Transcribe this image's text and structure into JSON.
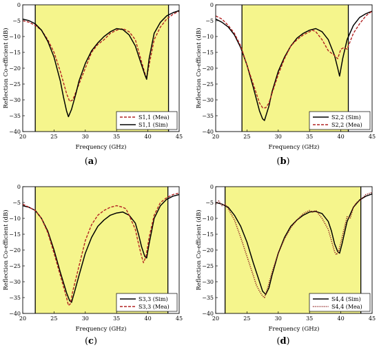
{
  "colors": {
    "band_fill": "#f5f58c",
    "sim_line": "#000000",
    "mea_line": "#b22222",
    "mea_line_dotted": "#8b1a1a"
  },
  "chart_data": [
    {
      "type": "line",
      "panel_label": "(a)",
      "xlabel": "Frequency (GHz)",
      "ylabel": "Reflection Co-efficient (dB)",
      "xlim": [
        20,
        45
      ],
      "ylim": [
        -40,
        0
      ],
      "x_ticks": [
        20,
        25,
        30,
        35,
        40,
        45
      ],
      "y_ticks": [
        0,
        -5,
        -10,
        -15,
        -20,
        -25,
        -30,
        -35,
        -40
      ],
      "band": [
        22.0,
        43.3
      ],
      "legend_position": "bottom-right",
      "series": [
        {
          "name": "S1,1 (Mea)",
          "style": "dashed",
          "x": [
            20,
            21,
            22,
            23,
            24,
            25,
            26,
            27,
            27.5,
            28,
            29,
            30,
            31,
            32,
            33,
            34,
            35,
            36,
            37,
            38,
            39,
            39.5,
            39.8,
            40.3,
            41,
            42,
            43,
            44,
            45
          ],
          "y": [
            -5,
            -5.5,
            -6.5,
            -8,
            -11,
            -15,
            -21,
            -28,
            -30.5,
            -30,
            -25,
            -20,
            -15,
            -12.5,
            -11,
            -9,
            -8,
            -7.5,
            -8.5,
            -11,
            -18,
            -21.5,
            -23,
            -18,
            -11,
            -7,
            -4.5,
            -3,
            -2
          ]
        },
        {
          "name": "S1,1 (Sim)",
          "style": "solid",
          "x": [
            20,
            21,
            22,
            23,
            24,
            25,
            26,
            26.5,
            27,
            27.3,
            27.8,
            28.5,
            29,
            30,
            31,
            32,
            33,
            34,
            35,
            36,
            37,
            38,
            39,
            39.5,
            39.8,
            40.2,
            41,
            42,
            43,
            44,
            45
          ],
          "y": [
            -4.5,
            -5,
            -6,
            -8,
            -11.5,
            -16.5,
            -24,
            -29,
            -33.5,
            -35.3,
            -33,
            -28,
            -24,
            -18.5,
            -14.5,
            -12,
            -10,
            -8.5,
            -7.5,
            -7.8,
            -9.5,
            -13,
            -19,
            -22,
            -23.5,
            -17,
            -9,
            -5.5,
            -3.5,
            -2.5,
            -1.8
          ]
        }
      ]
    },
    {
      "type": "line",
      "panel_label": "(b)",
      "xlabel": "Frequency (GHz)",
      "ylabel": "Reflection Co-efficient (dB)",
      "xlim": [
        20,
        45
      ],
      "ylim": [
        -40,
        0
      ],
      "x_ticks": [
        20,
        25,
        30,
        35,
        40,
        45
      ],
      "y_ticks": [
        0,
        -5,
        -10,
        -15,
        -20,
        -25,
        -30,
        -35,
        -40
      ],
      "band": [
        24.2,
        41.2
      ],
      "legend_position": "bottom-right",
      "series": [
        {
          "name": "S2,2 (Sim)",
          "style": "solid",
          "x": [
            20,
            21,
            22,
            23,
            24,
            25,
            26,
            27,
            27.5,
            27.8,
            28.5,
            29,
            30,
            31,
            32,
            33,
            34,
            35,
            36,
            37,
            38,
            39,
            39.5,
            39.8,
            40.3,
            41,
            42,
            43,
            44,
            45
          ],
          "y": [
            -4.5,
            -5.5,
            -7,
            -9.5,
            -13.5,
            -19,
            -26,
            -33.5,
            -36,
            -36.5,
            -32,
            -27.5,
            -21,
            -16.5,
            -13,
            -10.5,
            -9,
            -8,
            -7.5,
            -8.5,
            -11,
            -16,
            -20,
            -22.5,
            -17,
            -11,
            -6.5,
            -4,
            -2.8,
            -2
          ]
        },
        {
          "name": "S2,2 (Mea)",
          "style": "dashed",
          "x": [
            20,
            21,
            22,
            23,
            24,
            25,
            26,
            27,
            27.5,
            28,
            28.5,
            29,
            30,
            31,
            32,
            33,
            34,
            35,
            35.5,
            36,
            37,
            38,
            39,
            39.5,
            40,
            40.5,
            41,
            42,
            43,
            44,
            45
          ],
          "y": [
            -3.5,
            -4.5,
            -6.5,
            -9,
            -13,
            -19,
            -25,
            -31,
            -32.5,
            -32.5,
            -31,
            -28,
            -22,
            -17,
            -13,
            -11,
            -9.5,
            -8.5,
            -8,
            -8.5,
            -11,
            -14.5,
            -16,
            -17,
            -14,
            -13.5,
            -14,
            -9,
            -6,
            -3.5,
            -2
          ]
        }
      ]
    },
    {
      "type": "line",
      "panel_label": "(c)",
      "xlabel": "Frequency (GHz)",
      "ylabel": "Reflection Co-efficient (dB)",
      "xlim": [
        20,
        45
      ],
      "ylim": [
        -40,
        0
      ],
      "x_ticks": [
        20,
        25,
        30,
        35,
        40,
        45
      ],
      "y_ticks": [
        0,
        -5,
        -10,
        -15,
        -20,
        -25,
        -30,
        -35,
        -40
      ],
      "band": [
        22.0,
        43.2
      ],
      "legend_position": "bottom-right",
      "series": [
        {
          "name": "S3,3 (Sim)",
          "style": "solid",
          "x": [
            20,
            21,
            22,
            23,
            24,
            25,
            26,
            27,
            27.5,
            27.8,
            28.3,
            29,
            30,
            31,
            32,
            33,
            34,
            35,
            36,
            37,
            38,
            38.5,
            39,
            39.5,
            39.8,
            40.2,
            41,
            42,
            43,
            44,
            45
          ],
          "y": [
            -6,
            -6.5,
            -7.5,
            -10,
            -14,
            -20,
            -27,
            -33.5,
            -36,
            -36.5,
            -33,
            -28,
            -21,
            -16,
            -12.5,
            -10.5,
            -9,
            -8.3,
            -8,
            -9,
            -11.5,
            -15,
            -19,
            -22,
            -22.5,
            -18,
            -10,
            -6,
            -4,
            -3,
            -2.5
          ]
        },
        {
          "name": "S3,3 (Mea)",
          "style": "dashed",
          "x": [
            20,
            21,
            22,
            23,
            24,
            25,
            26,
            27,
            27.3,
            27.6,
            28,
            29,
            30,
            31,
            32,
            33,
            34,
            35,
            36,
            36.5,
            37,
            38,
            38.5,
            39,
            39.3,
            39.7,
            40.2,
            41,
            42,
            43,
            44,
            45
          ],
          "y": [
            -5.5,
            -6.5,
            -7.5,
            -10,
            -14.5,
            -21,
            -28,
            -35,
            -37.5,
            -37,
            -33,
            -25,
            -17,
            -12,
            -9,
            -7.5,
            -6.5,
            -6,
            -6.5,
            -7,
            -9,
            -13.5,
            -18,
            -22,
            -24,
            -22,
            -16,
            -9,
            -5,
            -3.5,
            -2.5,
            -2
          ]
        }
      ]
    },
    {
      "type": "line",
      "panel_label": "(d)",
      "xlabel": "Frequency (GHz)",
      "ylabel": "Reflection Co-efficient (dB)",
      "xlim": [
        20,
        45
      ],
      "ylim": [
        -40,
        0
      ],
      "x_ticks": [
        20,
        25,
        30,
        35,
        40,
        45
      ],
      "y_ticks": [
        0,
        -5,
        -10,
        -15,
        -20,
        -25,
        -30,
        -35,
        -40
      ],
      "band": [
        21.5,
        43.2
      ],
      "legend_position": "bottom-right",
      "series": [
        {
          "name": "S4,4 (Sim)",
          "style": "solid",
          "x": [
            20,
            21,
            22,
            23,
            24,
            25,
            26,
            27,
            27.5,
            28,
            28.5,
            29,
            30,
            31,
            32,
            33,
            34,
            35,
            36,
            37,
            38,
            38.5,
            39,
            39.5,
            39.8,
            40.2,
            41,
            42,
            43,
            44,
            45
          ],
          "y": [
            -5,
            -5.5,
            -6.5,
            -9,
            -12.5,
            -17.5,
            -24,
            -30,
            -33,
            -34,
            -32,
            -28,
            -21,
            -16,
            -12.5,
            -10.5,
            -9,
            -8,
            -7.8,
            -8.5,
            -11,
            -14,
            -18,
            -20.5,
            -21,
            -18,
            -11,
            -6.5,
            -4.2,
            -3,
            -2.3
          ]
        },
        {
          "name": "S4,4 (Mea)",
          "style": "dotted",
          "x": [
            20,
            20.5,
            21,
            21.5,
            22,
            23,
            24,
            25,
            26,
            26.5,
            27,
            27.5,
            27.8,
            28.3,
            29,
            30,
            31,
            32,
            33,
            34,
            35,
            35.5,
            36,
            37,
            38,
            38.5,
            39,
            39.3,
            39.7,
            40.2,
            41,
            41.5,
            42,
            42.5,
            43,
            44,
            45
          ],
          "y": [
            -5.5,
            -4.5,
            -6,
            -5.5,
            -7,
            -10.5,
            -16,
            -22,
            -28,
            -31,
            -33,
            -34.5,
            -35,
            -32,
            -27,
            -21,
            -16.5,
            -13,
            -10.5,
            -8.5,
            -7.5,
            -8,
            -7.5,
            -10,
            -13.5,
            -17,
            -20.5,
            -21.5,
            -20,
            -16,
            -9.5,
            -10,
            -6.5,
            -5,
            -4.5,
            -2.5,
            -1.8
          ]
        }
      ]
    }
  ]
}
